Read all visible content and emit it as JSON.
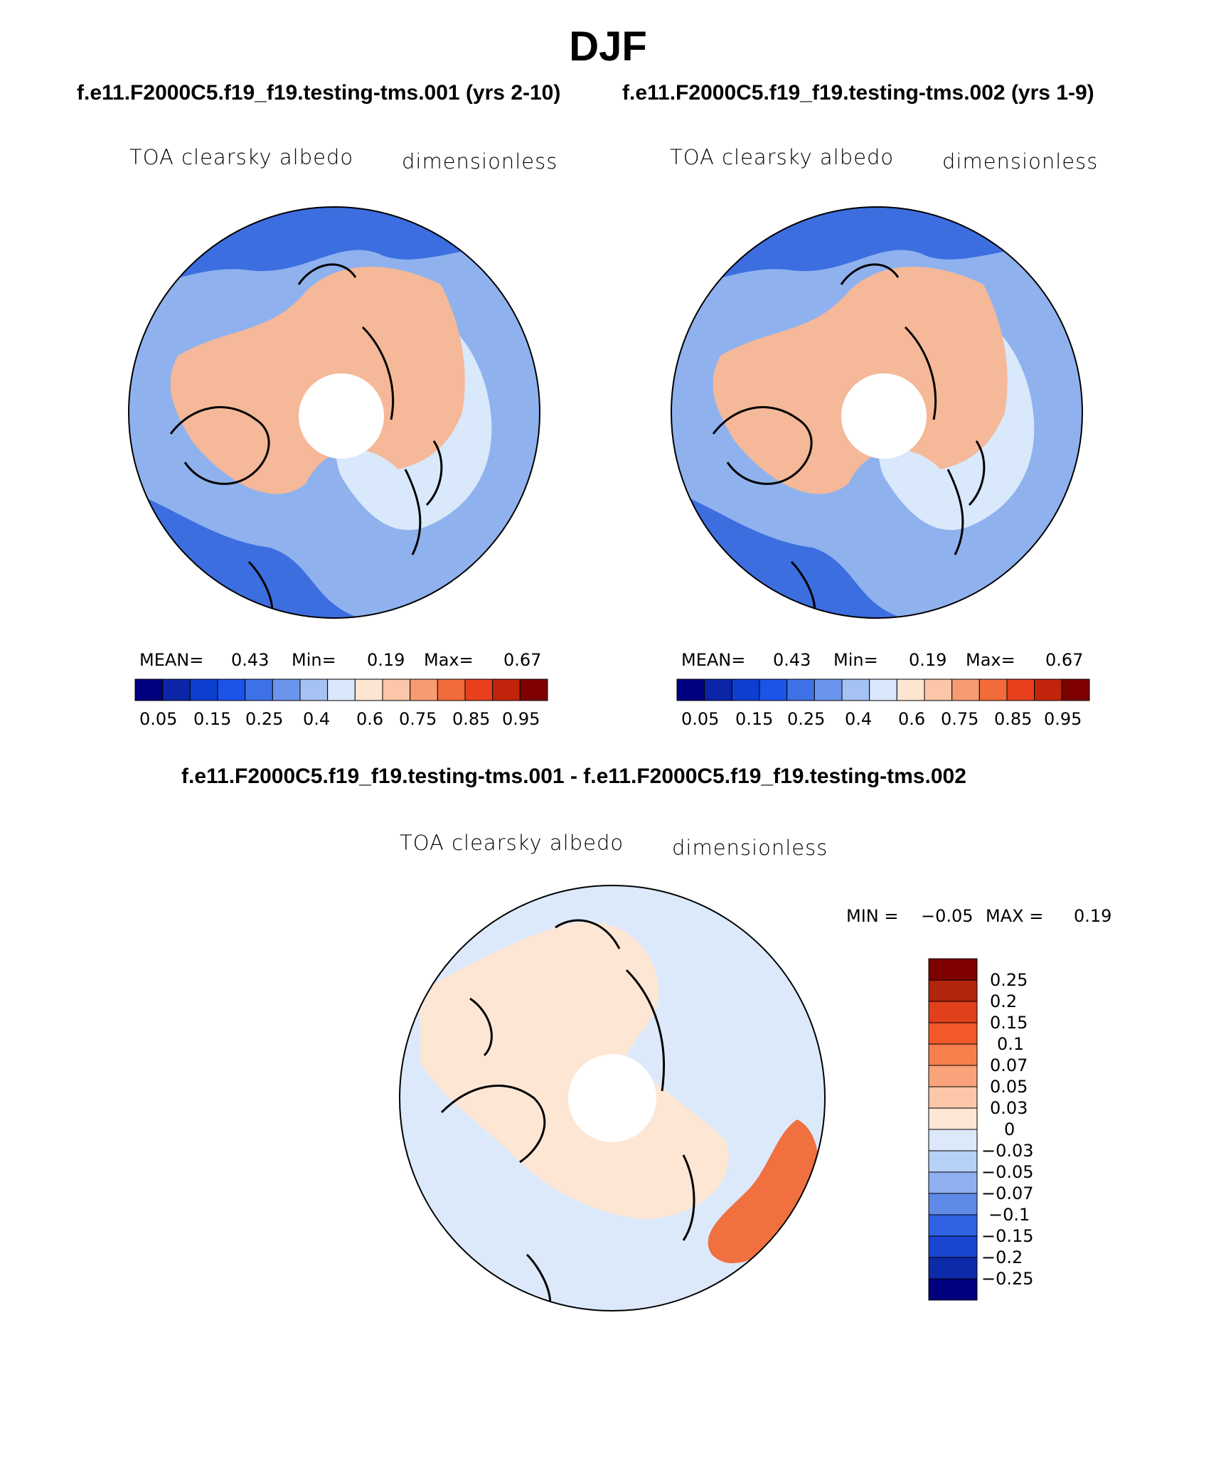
{
  "figure": {
    "title": "DJF",
    "subtitle_left": "f.e11.F2000C5.f19_f19.testing-tms.001 (yrs 2-10)",
    "subtitle_right": "f.e11.F2000C5.f19_f19.testing-tms.002 (yrs 1-9)",
    "diff_title": "f.e11.F2000C5.f19_f19.testing-tms.001 - f.e11.F2000C5.f19_f19.testing-tms.002"
  },
  "panels": [
    {
      "variable": "TOA clearsky albedo",
      "units": "dimensionless",
      "stats": {
        "mean_label": "MEAN=",
        "mean": "0.43",
        "min_label": "Min=",
        "min": "0.19",
        "max_label": "Max=",
        "max": "0.67"
      },
      "colorbar_labels": [
        "0.05",
        "0.15",
        "0.25",
        "0.4",
        "0.6",
        "0.75",
        "0.85",
        "0.95"
      ]
    },
    {
      "variable": "TOA clearsky albedo",
      "units": "dimensionless",
      "stats": {
        "mean_label": "MEAN=",
        "mean": "0.43",
        "min_label": "Min=",
        "min": "0.19",
        "max_label": "Max=",
        "max": "0.67"
      },
      "colorbar_labels": [
        "0.05",
        "0.15",
        "0.25",
        "0.4",
        "0.6",
        "0.75",
        "0.85",
        "0.95"
      ]
    },
    {
      "variable": "TOA clearsky albedo",
      "units": "dimensionless",
      "stats": {
        "min_label": "MIN =",
        "min": "−0.05",
        "max_label": "MAX =",
        "max": "0.19"
      },
      "colorbar_labels": [
        "0.25",
        "0.2",
        "0.15",
        "0.1",
        "0.07",
        "0.05",
        "0.03",
        "0",
        "−0.03",
        "−0.05",
        "−0.07",
        "−0.1",
        "−0.15",
        "−0.2",
        "−0.25"
      ]
    }
  ],
  "colors": {
    "abs_scale": [
      "#00007f",
      "#0a25a8",
      "#0c3ed0",
      "#1a55e8",
      "#3f72e6",
      "#6b95ec",
      "#a6c2f3",
      "#d9e8fb",
      "#fde5d2",
      "#fcc6a8",
      "#f79b72",
      "#f26b3a",
      "#e8401c",
      "#c0250c",
      "#7e0000"
    ],
    "diff_scale": [
      "#7e0000",
      "#b0250b",
      "#e0401b",
      "#f2592a",
      "#f77f4c",
      "#f9a37a",
      "#fbc7a8",
      "#fde6d4",
      "#dbe9fb",
      "#b6d0f6",
      "#8eb0f0",
      "#5f8ae8",
      "#2f63e4",
      "#1a45d0",
      "#0c2ba8",
      "#00007f"
    ],
    "land_warm": "#f5b898",
    "ocean_light": "#8fb2ee",
    "ocean_dark": "#3d6ee0",
    "ocean_pale": "#d9e8fb",
    "diff_land": "#fde6d4",
    "diff_ocean": "#dbe9fb",
    "diff_hot": "#f07040"
  }
}
